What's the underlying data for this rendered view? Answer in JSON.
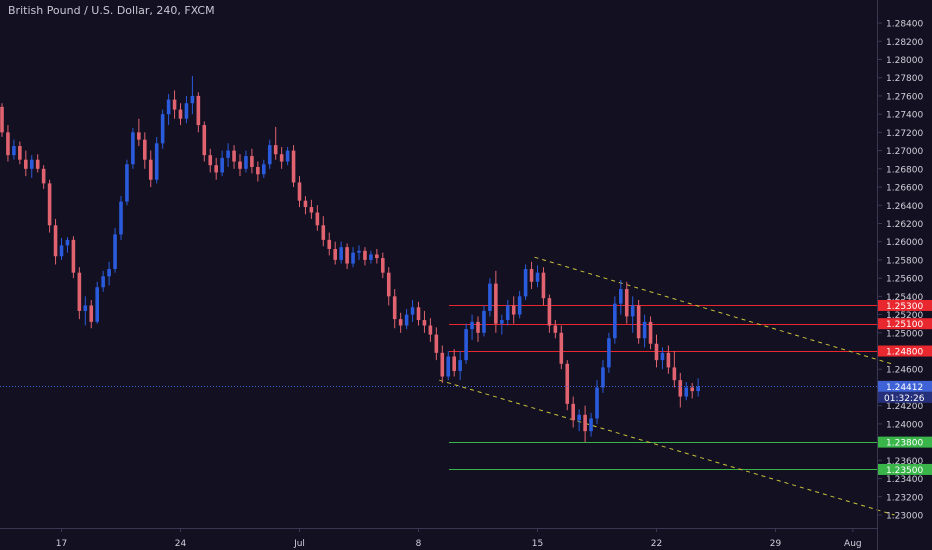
{
  "header": {
    "title": "British Pound / U.S. Dollar, 240, FXCM"
  },
  "colors": {
    "background": "#131022",
    "up": "#2a5bdc",
    "down": "#e0636f",
    "resistance": "#e8282e",
    "support": "#3ab54a",
    "trendline": "#c9c23a",
    "price_line": "#3f63d6",
    "axis_text": "#cfd0d8"
  },
  "chart_data": {
    "type": "candlestick",
    "title": "British Pound / U.S. Dollar, 240, FXCM",
    "ylim": [
      1.229,
      1.2865
    ],
    "y_ticks": [
      "1.28400",
      "1.28200",
      "1.28000",
      "1.27800",
      "1.27600",
      "1.27400",
      "1.27200",
      "1.27000",
      "1.26800",
      "1.26600",
      "1.26400",
      "1.26200",
      "1.26000",
      "1.25800",
      "1.25600",
      "1.25400",
      "1.25200",
      "1.25000",
      "1.24600",
      "1.24200",
      "1.24000",
      "1.23600",
      "1.23400",
      "1.23200",
      "1.23000"
    ],
    "x_ticks": [
      {
        "label": "17",
        "idx": 10
      },
      {
        "label": "24",
        "idx": 30
      },
      {
        "label": "Jul",
        "idx": 50
      },
      {
        "label": "8",
        "idx": 70
      },
      {
        "label": "15",
        "idx": 90
      },
      {
        "label": "22",
        "idx": 110
      },
      {
        "label": "29",
        "idx": 130
      },
      {
        "label": "Aug",
        "idx": 143
      }
    ],
    "candles": [
      [
        1.2748,
        1.2752,
        1.2715,
        1.272
      ],
      [
        1.272,
        1.2728,
        1.2688,
        1.2695
      ],
      [
        1.2695,
        1.2712,
        1.269,
        1.2705
      ],
      [
        1.2705,
        1.271,
        1.2685,
        1.269
      ],
      [
        1.269,
        1.27,
        1.2672,
        1.268
      ],
      [
        1.268,
        1.2695,
        1.267,
        1.269
      ],
      [
        1.269,
        1.2696,
        1.2676,
        1.268
      ],
      [
        1.268,
        1.2684,
        1.2658,
        1.2664
      ],
      [
        1.2664,
        1.2668,
        1.261,
        1.2618
      ],
      [
        1.2618,
        1.2625,
        1.2575,
        1.2584
      ],
      [
        1.2584,
        1.2604,
        1.258,
        1.2596
      ],
      [
        1.2596,
        1.2605,
        1.2588,
        1.2602
      ],
      [
        1.2602,
        1.2606,
        1.256,
        1.2566
      ],
      [
        1.2566,
        1.2572,
        1.2515,
        1.2524
      ],
      [
        1.2524,
        1.254,
        1.2508,
        1.253
      ],
      [
        1.253,
        1.2536,
        1.2505,
        1.2512
      ],
      [
        1.2512,
        1.2556,
        1.251,
        1.255
      ],
      [
        1.255,
        1.2568,
        1.2545,
        1.2562
      ],
      [
        1.2562,
        1.2578,
        1.2552,
        1.257
      ],
      [
        1.257,
        1.2615,
        1.2566,
        1.2608
      ],
      [
        1.2608,
        1.265,
        1.2602,
        1.2644
      ],
      [
        1.2644,
        1.269,
        1.264,
        1.2685
      ],
      [
        1.2685,
        1.2725,
        1.268,
        1.272
      ],
      [
        1.272,
        1.2735,
        1.2705,
        1.2712
      ],
      [
        1.2712,
        1.272,
        1.268,
        1.269
      ],
      [
        1.269,
        1.27,
        1.266,
        1.2668
      ],
      [
        1.2668,
        1.2715,
        1.2664,
        1.2708
      ],
      [
        1.2708,
        1.2745,
        1.2702,
        1.274
      ],
      [
        1.274,
        1.2762,
        1.2728,
        1.2756
      ],
      [
        1.2756,
        1.2766,
        1.2735,
        1.2745
      ],
      [
        1.2745,
        1.2752,
        1.2728,
        1.2735
      ],
      [
        1.2735,
        1.276,
        1.273,
        1.2752
      ],
      [
        1.2752,
        1.2782,
        1.274,
        1.276
      ],
      [
        1.276,
        1.2764,
        1.272,
        1.2728
      ],
      [
        1.2728,
        1.2732,
        1.2688,
        1.2695
      ],
      [
        1.2695,
        1.2702,
        1.2676,
        1.2684
      ],
      [
        1.2684,
        1.2692,
        1.2668,
        1.2676
      ],
      [
        1.2676,
        1.27,
        1.2672,
        1.2692
      ],
      [
        1.2692,
        1.2708,
        1.2682,
        1.27
      ],
      [
        1.27,
        1.2706,
        1.268,
        1.2688
      ],
      [
        1.2688,
        1.2696,
        1.2672,
        1.268
      ],
      [
        1.268,
        1.27,
        1.2676,
        1.2694
      ],
      [
        1.2694,
        1.2702,
        1.2675,
        1.2682
      ],
      [
        1.2682,
        1.2688,
        1.2666,
        1.2674
      ],
      [
        1.2674,
        1.269,
        1.267,
        1.2685
      ],
      [
        1.2685,
        1.2712,
        1.268,
        1.2706
      ],
      [
        1.2706,
        1.2726,
        1.269,
        1.2696
      ],
      [
        1.2696,
        1.2704,
        1.268,
        1.2688
      ],
      [
        1.2688,
        1.2704,
        1.2684,
        1.27
      ],
      [
        1.27,
        1.2706,
        1.266,
        1.2665
      ],
      [
        1.2665,
        1.2672,
        1.2638,
        1.2645
      ],
      [
        1.2645,
        1.265,
        1.263,
        1.2638
      ],
      [
        1.2638,
        1.2646,
        1.2625,
        1.2632
      ],
      [
        1.2632,
        1.264,
        1.2612,
        1.2618
      ],
      [
        1.2618,
        1.2628,
        1.2595,
        1.2602
      ],
      [
        1.2602,
        1.261,
        1.2585,
        1.2592
      ],
      [
        1.2592,
        1.26,
        1.2575,
        1.258
      ],
      [
        1.258,
        1.26,
        1.2576,
        1.2594
      ],
      [
        1.2594,
        1.2598,
        1.257,
        1.2576
      ],
      [
        1.2576,
        1.2594,
        1.2572,
        1.2588
      ],
      [
        1.2588,
        1.2596,
        1.258,
        1.259
      ],
      [
        1.259,
        1.2594,
        1.2574,
        1.258
      ],
      [
        1.258,
        1.259,
        1.2576,
        1.2586
      ],
      [
        1.2586,
        1.2592,
        1.2576,
        1.2582
      ],
      [
        1.2582,
        1.2588,
        1.256,
        1.2566
      ],
      [
        1.2566,
        1.2572,
        1.253,
        1.254
      ],
      [
        1.254,
        1.2548,
        1.2505,
        1.2515
      ],
      [
        1.2515,
        1.2522,
        1.25,
        1.2508
      ],
      [
        1.2508,
        1.2526,
        1.2504,
        1.252
      ],
      [
        1.252,
        1.2536,
        1.2512,
        1.2528
      ],
      [
        1.2528,
        1.2534,
        1.2508,
        1.2514
      ],
      [
        1.2514,
        1.2524,
        1.25,
        1.2508
      ],
      [
        1.2508,
        1.2516,
        1.249,
        1.2498
      ],
      [
        1.2498,
        1.2506,
        1.247,
        1.2478
      ],
      [
        1.2478,
        1.2486,
        1.2445,
        1.2452
      ],
      [
        1.2452,
        1.248,
        1.2448,
        1.2474
      ],
      [
        1.2474,
        1.2482,
        1.2452,
        1.2458
      ],
      [
        1.2458,
        1.248,
        1.2448,
        1.247
      ],
      [
        1.247,
        1.251,
        1.2466,
        1.2504
      ],
      [
        1.2504,
        1.252,
        1.2492,
        1.2512
      ],
      [
        1.2512,
        1.2518,
        1.249,
        1.25
      ],
      [
        1.25,
        1.253,
        1.2496,
        1.2524
      ],
      [
        1.2524,
        1.256,
        1.2518,
        1.2554
      ],
      [
        1.2554,
        1.2568,
        1.25,
        1.251
      ],
      [
        1.251,
        1.252,
        1.2498,
        1.2514
      ],
      [
        1.2514,
        1.2536,
        1.2508,
        1.253
      ],
      [
        1.253,
        1.254,
        1.251,
        1.252
      ],
      [
        1.252,
        1.2546,
        1.2516,
        1.254
      ],
      [
        1.254,
        1.2575,
        1.2536,
        1.257
      ],
      [
        1.257,
        1.2578,
        1.2548,
        1.2556
      ],
      [
        1.2556,
        1.2574,
        1.255,
        1.2566
      ],
      [
        1.2566,
        1.2572,
        1.253,
        1.2538
      ],
      [
        1.2538,
        1.2542,
        1.25,
        1.2508
      ],
      [
        1.2508,
        1.2514,
        1.2494,
        1.25
      ],
      [
        1.25,
        1.2508,
        1.246,
        1.2466
      ],
      [
        1.2466,
        1.247,
        1.2415,
        1.2422
      ],
      [
        1.2422,
        1.243,
        1.2396,
        1.2404
      ],
      [
        1.2404,
        1.2416,
        1.2392,
        1.241
      ],
      [
        1.241,
        1.242,
        1.238,
        1.2392
      ],
      [
        1.2392,
        1.2412,
        1.2386,
        1.2406
      ],
      [
        1.2406,
        1.2448,
        1.24,
        1.244
      ],
      [
        1.244,
        1.247,
        1.2434,
        1.2462
      ],
      [
        1.2462,
        1.25,
        1.2456,
        1.2494
      ],
      [
        1.2494,
        1.254,
        1.2488,
        1.2532
      ],
      [
        1.2532,
        1.2558,
        1.252,
        1.2548
      ],
      [
        1.2548,
        1.2556,
        1.251,
        1.2518
      ],
      [
        1.2518,
        1.254,
        1.25,
        1.253
      ],
      [
        1.253,
        1.2536,
        1.2488,
        1.2494
      ],
      [
        1.2494,
        1.252,
        1.2484,
        1.2512
      ],
      [
        1.2512,
        1.2518,
        1.2482,
        1.2488
      ],
      [
        1.2488,
        1.2498,
        1.2462,
        1.247
      ],
      [
        1.247,
        1.2484,
        1.246,
        1.2478
      ],
      [
        1.2478,
        1.2486,
        1.2455,
        1.2462
      ],
      [
        1.2462,
        1.248,
        1.244,
        1.2448
      ],
      [
        1.2448,
        1.2456,
        1.2418,
        1.243
      ],
      [
        1.243,
        1.2446,
        1.2426,
        1.244
      ],
      [
        1.244,
        1.2445,
        1.2428,
        1.2436
      ],
      [
        1.2436,
        1.245,
        1.243,
        1.2441
      ]
    ],
    "horizontal_levels": [
      {
        "label": "1.25300",
        "value": 1.253,
        "kind": "resistance"
      },
      {
        "label": "1.25100",
        "value": 1.251,
        "kind": "resistance"
      },
      {
        "label": "1.24800",
        "value": 1.248,
        "kind": "resistance"
      },
      {
        "label": "1.23800",
        "value": 1.238,
        "kind": "support"
      },
      {
        "label": "1.23500",
        "value": 1.235,
        "kind": "support"
      }
    ],
    "trendlines": [
      {
        "name": "upper",
        "from": {
          "idx": 89.5,
          "y": 1.2583
        },
        "to": {
          "idx": 150,
          "y": 1.2465
        }
      },
      {
        "name": "lower",
        "from": {
          "idx": 73.5,
          "y": 1.2448
        },
        "to": {
          "idx": 150,
          "y": 1.23
        }
      }
    ],
    "current_price": {
      "label": "1.24412",
      "value": 1.24412,
      "countdown": "01:32:26"
    }
  }
}
